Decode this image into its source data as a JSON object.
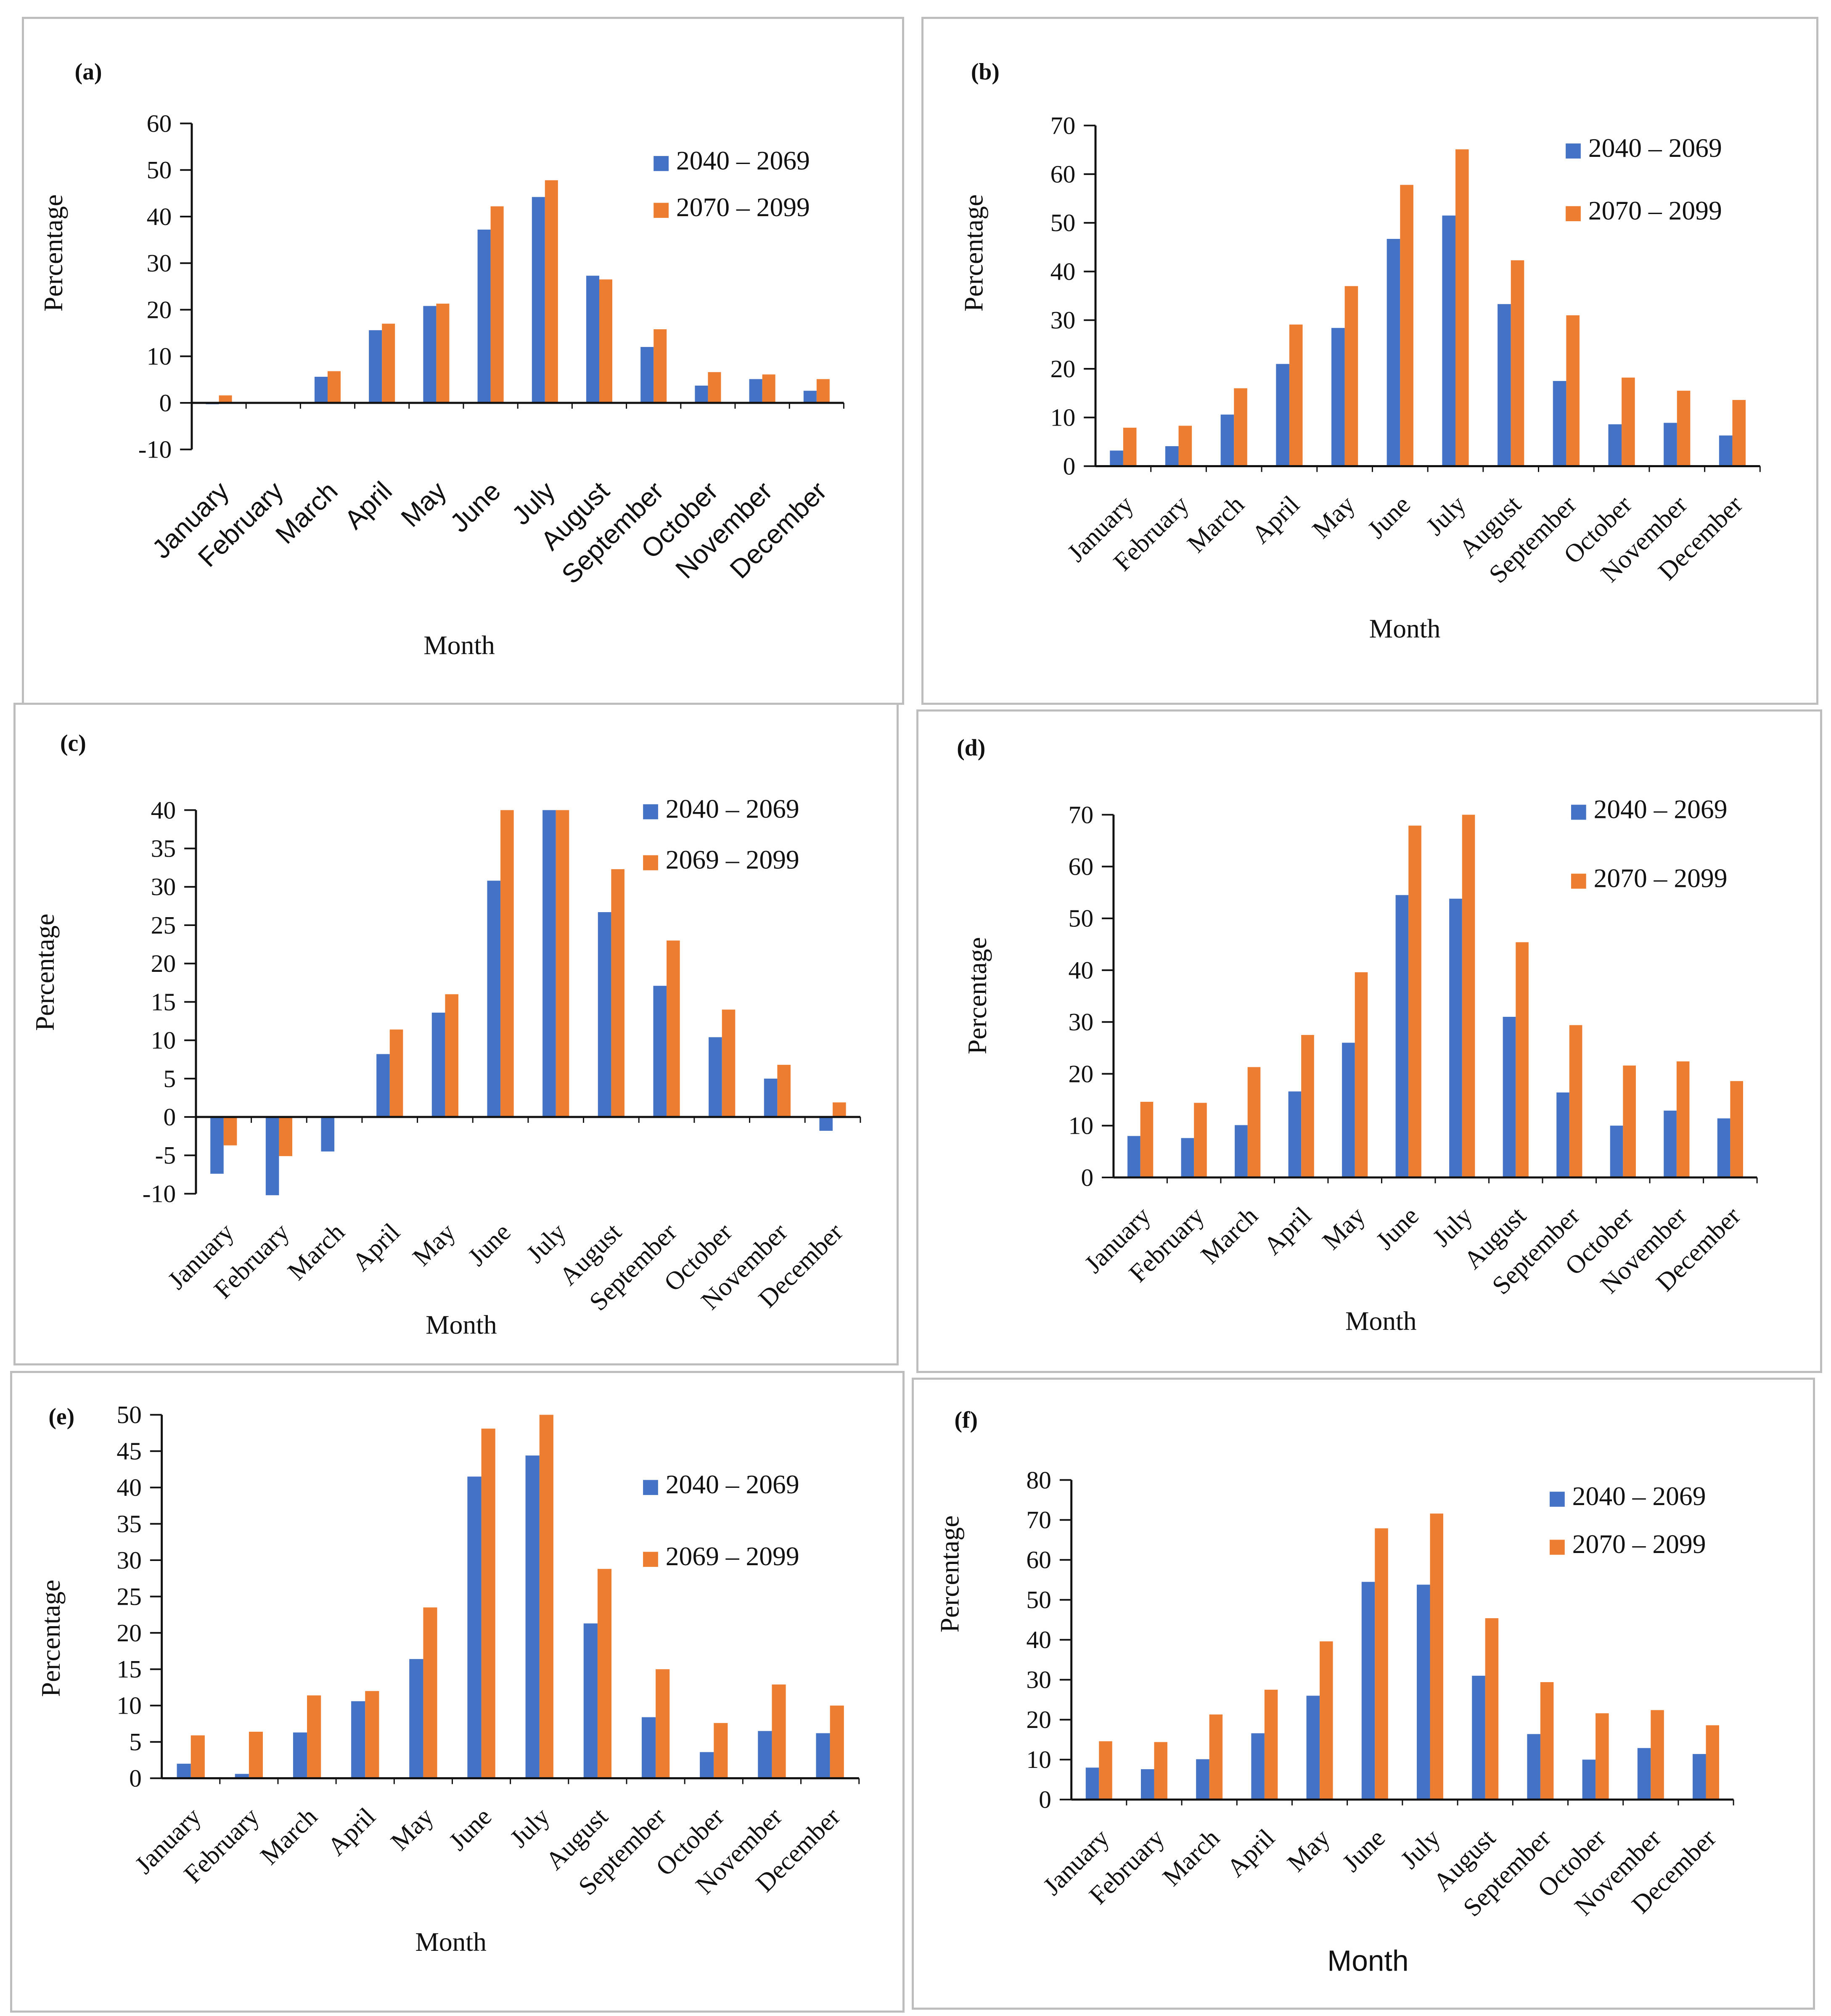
{
  "axis_labels": {
    "y": "Percentage",
    "x": "Month"
  },
  "colors": {
    "series_1": "#4472C4",
    "series_2": "#ED7D31"
  },
  "chart_data": [
    {
      "id": "a",
      "label": "(a)",
      "type": "bar",
      "title": "",
      "xlabel": "Month",
      "ylabel": "Percentage",
      "ylim": [
        -10,
        60
      ],
      "yticks": [
        -10,
        0,
        10,
        20,
        30,
        40,
        50,
        60
      ],
      "categories": [
        "January",
        "February",
        "March",
        "April",
        "May",
        "June",
        "July",
        "August",
        "September",
        "October",
        "November",
        "December"
      ],
      "legend_position": "top-right",
      "series": [
        {
          "name": "2040 – 2069",
          "color": "#4472C4",
          "values": [
            -0.3,
            -0.2,
            5.6,
            15.6,
            20.8,
            37.2,
            44.2,
            27.3,
            12.0,
            3.7,
            5.1,
            2.6
          ]
        },
        {
          "name": "2070 – 2099",
          "color": "#ED7D31",
          "values": [
            1.6,
            0.2,
            6.8,
            17.0,
            21.3,
            42.2,
            47.8,
            26.5,
            15.8,
            6.6,
            6.1,
            5.1
          ]
        }
      ]
    },
    {
      "id": "b",
      "label": "(b)",
      "type": "bar",
      "title": "",
      "xlabel": "Month",
      "ylabel": "Percentage",
      "ylim": [
        0,
        70
      ],
      "yticks": [
        0,
        10,
        20,
        30,
        40,
        50,
        60,
        70
      ],
      "categories": [
        "January",
        "February",
        "March",
        "April",
        "May",
        "June",
        "July",
        "August",
        "September",
        "October",
        "November",
        "December"
      ],
      "legend_position": "top-right",
      "series": [
        {
          "name": "2040 – 2069",
          "color": "#4472C4",
          "values": [
            3.2,
            4.1,
            10.6,
            21.0,
            28.4,
            46.7,
            51.5,
            33.3,
            17.5,
            8.6,
            8.9,
            6.3
          ]
        },
        {
          "name": "2070 – 2099",
          "color": "#ED7D31",
          "values": [
            7.9,
            8.3,
            16.0,
            29.1,
            37.0,
            57.8,
            65.1,
            42.3,
            31.0,
            18.2,
            15.5,
            13.6
          ]
        }
      ]
    },
    {
      "id": "c",
      "label": "(c)",
      "type": "bar",
      "title": "",
      "xlabel": "Month",
      "ylabel": "Percentage",
      "ylim": [
        -10,
        40
      ],
      "yticks": [
        -10,
        -5,
        0,
        5,
        10,
        15,
        20,
        25,
        30,
        35,
        40
      ],
      "categories": [
        "January",
        "February",
        "March",
        "April",
        "May",
        "June",
        "July",
        "August",
        "September",
        "October",
        "November",
        "December"
      ],
      "legend_position": "top-right",
      "series": [
        {
          "name": "2040 – 2069",
          "color": "#4472C4",
          "values": [
            -7.4,
            -10.2,
            -4.5,
            8.2,
            13.6,
            30.8,
            40.0,
            26.7,
            17.1,
            10.4,
            5.0,
            -1.8
          ]
        },
        {
          "name": "2069 – 2099",
          "color": "#ED7D31",
          "values": [
            -3.7,
            -5.1,
            0.1,
            11.4,
            16.0,
            40.0,
            40.0,
            32.3,
            23.0,
            14.0,
            6.8,
            1.9
          ]
        }
      ]
    },
    {
      "id": "d",
      "label": "(d)",
      "type": "bar",
      "title": "",
      "xlabel": "Month",
      "ylabel": "Percentage",
      "ylim": [
        0,
        70
      ],
      "yticks": [
        0,
        10,
        20,
        30,
        40,
        50,
        60,
        70
      ],
      "categories": [
        "January",
        "February",
        "March",
        "April",
        "May",
        "June",
        "July",
        "August",
        "September",
        "October",
        "November",
        "December"
      ],
      "legend_position": "top-right",
      "series": [
        {
          "name": "2040 – 2069",
          "color": "#4472C4",
          "values": [
            8.0,
            7.6,
            10.1,
            16.6,
            26.0,
            54.5,
            53.8,
            31.0,
            16.4,
            10.0,
            12.9,
            11.4
          ]
        },
        {
          "name": "2070 – 2099",
          "color": "#ED7D31",
          "values": [
            14.6,
            14.4,
            21.3,
            27.5,
            39.6,
            67.9,
            70.0,
            45.4,
            29.4,
            21.6,
            22.4,
            18.6
          ]
        }
      ]
    },
    {
      "id": "e",
      "label": "(e)",
      "type": "bar",
      "title": "",
      "xlabel": "Month",
      "ylabel": "Percentage",
      "ylim": [
        0,
        50
      ],
      "yticks": [
        0,
        5,
        10,
        15,
        20,
        25,
        30,
        35,
        40,
        45,
        50
      ],
      "categories": [
        "January",
        "February",
        "March",
        "April",
        "May",
        "June",
        "July",
        "August",
        "September",
        "October",
        "November",
        "December"
      ],
      "legend_position": "top-right",
      "series": [
        {
          "name": "2040 – 2069",
          "color": "#4472C4",
          "values": [
            2.0,
            0.6,
            6.3,
            10.6,
            16.4,
            41.5,
            44.4,
            21.3,
            8.4,
            3.6,
            6.5,
            6.2
          ]
        },
        {
          "name": "2069 – 2099",
          "color": "#ED7D31",
          "values": [
            5.9,
            6.4,
            11.4,
            12.0,
            23.5,
            48.1,
            50.0,
            28.8,
            15.0,
            7.6,
            12.9,
            10.0
          ]
        }
      ]
    },
    {
      "id": "f",
      "label": "(f)",
      "type": "bar",
      "title": "",
      "xlabel": "Month",
      "ylabel": "Percentage",
      "ylim": [
        0,
        80
      ],
      "yticks": [
        0,
        10,
        20,
        30,
        40,
        50,
        60,
        70,
        80
      ],
      "categories": [
        "January",
        "February",
        "March",
        "April",
        "May",
        "June",
        "July",
        "August",
        "September",
        "October",
        "November",
        "December"
      ],
      "legend_position": "top-right",
      "series": [
        {
          "name": "2040 – 2069",
          "color": "#4472C4",
          "values": [
            8.0,
            7.6,
            10.1,
            16.6,
            26.0,
            54.5,
            53.8,
            31.0,
            16.4,
            10.0,
            12.9,
            11.4
          ]
        },
        {
          "name": "2070 – 2099",
          "color": "#ED7D31",
          "values": [
            14.6,
            14.4,
            21.3,
            27.5,
            39.6,
            67.9,
            71.6,
            45.4,
            29.4,
            21.6,
            22.4,
            18.6
          ]
        }
      ]
    }
  ]
}
